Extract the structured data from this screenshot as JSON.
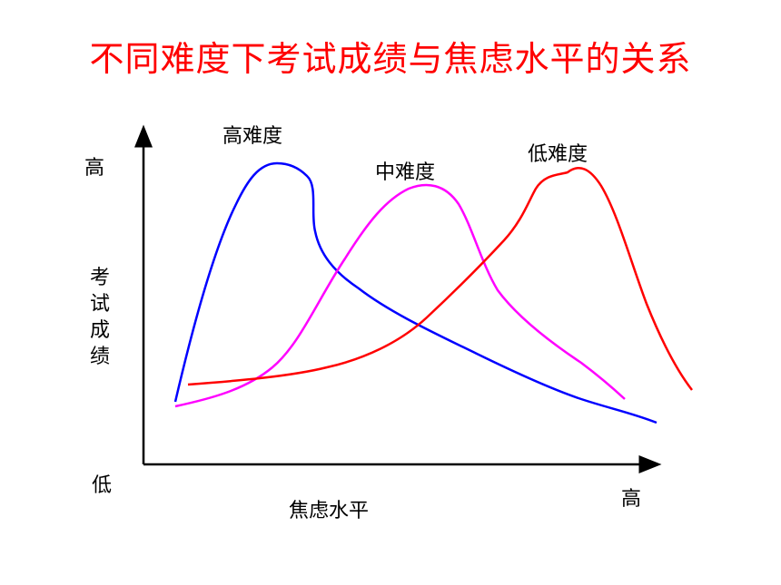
{
  "title": "不同难度下考试成绩与焦虑水平的关系",
  "axes": {
    "y_label": "考试成绩",
    "y_high": "高",
    "y_low": "低",
    "x_label": "焦虑水平",
    "x_high": "高"
  },
  "curves": [
    {
      "id": "high",
      "label": "高难度",
      "color": "#0000ff"
    },
    {
      "id": "medium",
      "label": "中难度",
      "color": "#ff00ff"
    },
    {
      "id": "low",
      "label": "低难度",
      "color": "#ff0000"
    }
  ]
}
